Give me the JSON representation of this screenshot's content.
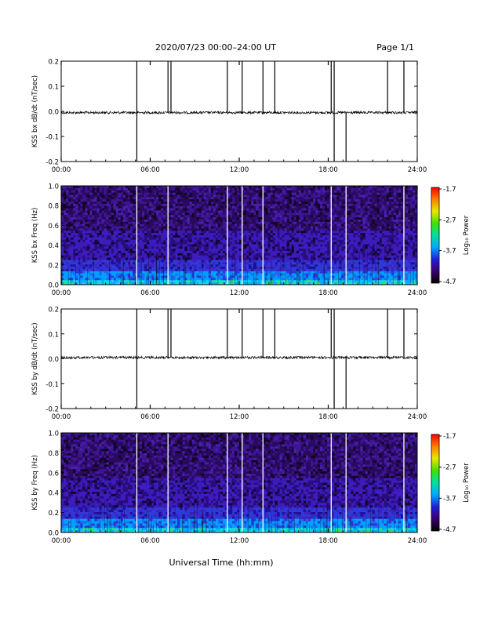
{
  "header": {
    "title": "2020/07/23  00:00–24:00 UT",
    "page_label": "Page 1/1"
  },
  "footer": {
    "xlabel": "Universal Time (hh:mm)"
  },
  "chart_data": [
    {
      "type": "line",
      "ylabel": "KSS bx dB/dt (nT/sec)",
      "x_ticks": [
        "00:00",
        "06:00",
        "12:00",
        "18:00",
        "24:00"
      ],
      "xlim_hours": [
        0,
        24
      ],
      "ylim": [
        -0.2,
        0.2
      ],
      "y_ticks": [
        -0.2,
        -0.1,
        0.0,
        0.1,
        0.2
      ],
      "baseline": -0.005,
      "spikes": [
        {
          "t_hours": 5.1,
          "direction": "both"
        },
        {
          "t_hours": 7.2,
          "direction": "up"
        },
        {
          "t_hours": 7.4,
          "direction": "up"
        },
        {
          "t_hours": 11.2,
          "direction": "up"
        },
        {
          "t_hours": 12.2,
          "direction": "up"
        },
        {
          "t_hours": 13.6,
          "direction": "up"
        },
        {
          "t_hours": 14.4,
          "direction": "up"
        },
        {
          "t_hours": 18.2,
          "direction": "up"
        },
        {
          "t_hours": 18.4,
          "direction": "both"
        },
        {
          "t_hours": 19.2,
          "direction": "down"
        },
        {
          "t_hours": 22.0,
          "direction": "up"
        },
        {
          "t_hours": 23.1,
          "direction": "up"
        }
      ],
      "line_color": "#000000"
    },
    {
      "type": "heatmap",
      "ylabel": "KSS bx Freq (Hz)",
      "x_ticks": [
        "00:00",
        "06:00",
        "12:00",
        "18:00",
        "24:00"
      ],
      "xlim_hours": [
        0,
        24
      ],
      "ylim": [
        0.0,
        1.0
      ],
      "y_ticks": [
        "0.0",
        "0.2",
        "0.4",
        "0.6",
        "0.8",
        "1.0"
      ],
      "gap_lines_hours": [
        5.1,
        7.2,
        11.2,
        12.2,
        13.6,
        18.2,
        19.2,
        23.1
      ],
      "colorbar": {
        "label": "Log₁₀ Power",
        "ticks": [
          "-1.7",
          "-2.7",
          "-3.7",
          "-4.7"
        ],
        "range": [
          -4.7,
          -1.7
        ],
        "colors": [
          "#000000",
          "#3a0070",
          "#2020d8",
          "#00a8ff",
          "#00e0a0",
          "#40e000",
          "#e8e800",
          "#ff8000",
          "#ff0000"
        ]
      }
    },
    {
      "type": "line",
      "ylabel": "KSS by dB/dt (nT/sec)",
      "x_ticks": [
        "00:00",
        "06:00",
        "12:00",
        "18:00",
        "24:00"
      ],
      "xlim_hours": [
        0,
        24
      ],
      "ylim": [
        -0.2,
        0.2
      ],
      "y_ticks": [
        -0.2,
        -0.1,
        0.0,
        0.1,
        0.2
      ],
      "baseline": 0.005,
      "spikes": [
        {
          "t_hours": 5.1,
          "direction": "both"
        },
        {
          "t_hours": 7.2,
          "direction": "up"
        },
        {
          "t_hours": 7.4,
          "direction": "up"
        },
        {
          "t_hours": 11.2,
          "direction": "up"
        },
        {
          "t_hours": 12.2,
          "direction": "up"
        },
        {
          "t_hours": 13.6,
          "direction": "up"
        },
        {
          "t_hours": 14.4,
          "direction": "up"
        },
        {
          "t_hours": 18.2,
          "direction": "up"
        },
        {
          "t_hours": 18.4,
          "direction": "both"
        },
        {
          "t_hours": 19.2,
          "direction": "down"
        },
        {
          "t_hours": 22.0,
          "direction": "up"
        },
        {
          "t_hours": 23.1,
          "direction": "up"
        }
      ],
      "line_color": "#000000"
    },
    {
      "type": "heatmap",
      "ylabel": "KSS by Freq (Hz)",
      "x_ticks": [
        "00:00",
        "06:00",
        "12:00",
        "18:00",
        "24:00"
      ],
      "xlim_hours": [
        0,
        24
      ],
      "ylim": [
        0.0,
        1.0
      ],
      "y_ticks": [
        "0.0",
        "0.2",
        "0.4",
        "0.6",
        "0.8",
        "1.0"
      ],
      "gap_lines_hours": [
        5.1,
        7.2,
        11.2,
        12.2,
        13.6,
        18.2,
        19.2,
        23.1
      ],
      "colorbar": {
        "label": "Log₁₀ Power",
        "ticks": [
          "-1.7",
          "-2.7",
          "-3.7",
          "-4.7"
        ],
        "range": [
          -4.7,
          -1.7
        ],
        "colors": [
          "#000000",
          "#3a0070",
          "#2020d8",
          "#00a8ff",
          "#00e0a0",
          "#40e000",
          "#e8e800",
          "#ff8000",
          "#ff0000"
        ]
      }
    }
  ]
}
